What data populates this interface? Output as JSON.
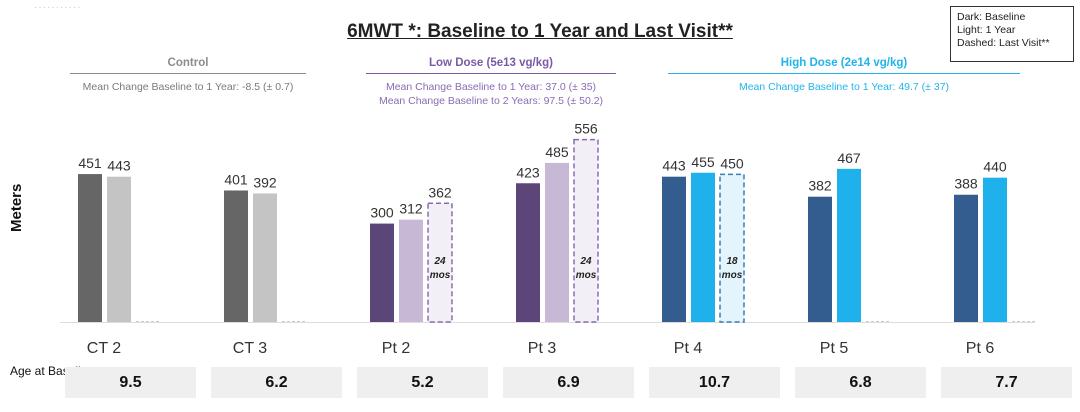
{
  "legend": {
    "line1": "Dark: Baseline",
    "line2": "Light: 1 Year",
    "line3": "Dashed: Last Visit**"
  },
  "groups": [
    {
      "name": "Control",
      "color": "#8c8c8c",
      "notes": [
        "Mean Change Baseline to 1 Year: -8.5 (± 0.7)"
      ],
      "note_color": "#7a7a7a"
    },
    {
      "name": "Low Dose (5e13 vg/kg)",
      "color": "#7a5aa6",
      "notes": [
        "Mean Change Baseline to 1 Year: 37.0 (± 35)",
        "Mean Change Baseline to 2 Years: 97.5 (± 50.2)"
      ],
      "note_color": "#8a6bb3"
    },
    {
      "name": "High Dose (2e14 vg/kg)",
      "color": "#21b4ea",
      "notes": [
        "Mean Change Baseline to 1 Year: 49.7 (± 37)"
      ],
      "note_color": "#21b4ea"
    }
  ],
  "age_label": "Age at Baseline",
  "ages": [
    "9.5",
    "6.2",
    "5.2",
    "6.9",
    "10.7",
    "6.8",
    "7.7"
  ],
  "chart_data": {
    "type": "bar",
    "title": "6MWT *: Baseline to 1 Year and Last Visit**",
    "ylabel": "Meters",
    "xlabel": "",
    "categories": [
      "CT 2",
      "CT 3",
      "Pt 2",
      "Pt 3",
      "Pt 4",
      "Pt 5",
      "Pt 6"
    ],
    "series": [
      {
        "name": "Baseline",
        "values": [
          451,
          401,
          300,
          423,
          443,
          382,
          388
        ]
      },
      {
        "name": "1 Year",
        "values": [
          443,
          392,
          312,
          485,
          455,
          467,
          440
        ]
      },
      {
        "name": "Last Visit**",
        "values": [
          null,
          null,
          362,
          556,
          450,
          null,
          null
        ]
      }
    ],
    "last_visit_annotations": [
      null,
      null,
      "24 mos",
      "24 mos",
      "18 mos",
      null,
      null
    ],
    "ylim": [
      0,
      600
    ],
    "grid": false,
    "legend_position": "top-right",
    "colors": {
      "baseline": [
        "#666666",
        "#666666",
        "#5c4578",
        "#5c4578",
        "#335d8f",
        "#335d8f",
        "#335d8f"
      ],
      "year1": [
        "#c4c4c4",
        "#c4c4c4",
        "#c7b8d6",
        "#c7b8d6",
        "#1eb1ec",
        "#1eb1ec",
        "#1eb1ec"
      ],
      "last_fill": [
        "#ffffff",
        "#ffffff",
        "#f2eff6",
        "#f2eff6",
        "#e3f4fc",
        "#ffffff",
        "#ffffff"
      ],
      "last_stroke": [
        "#bbbbbb",
        "#bbbbbb",
        "#8a6bb3",
        "#8a6bb3",
        "#3a7fb5",
        "#bbbbbb",
        "#bbbbbb"
      ]
    }
  }
}
